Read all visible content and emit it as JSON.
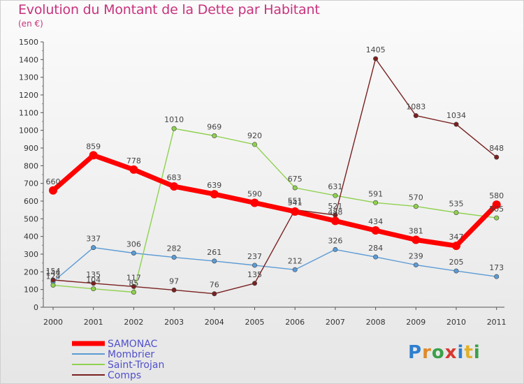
{
  "header": {
    "title": "Evolution du Montant de la Dette par Habitant",
    "subtitle": "(en €)"
  },
  "logo": {
    "letters": [
      {
        "ch": "P",
        "color": "#2e7fd0"
      },
      {
        "ch": "r",
        "color": "#e08a2a"
      },
      {
        "ch": "o",
        "color": "#3aa04a"
      },
      {
        "ch": "x",
        "color": "#d8372f"
      },
      {
        "ch": "i",
        "color": "#2e7fd0"
      },
      {
        "ch": "t",
        "color": "#e0b22a"
      },
      {
        "ch": "i",
        "color": "#3aa04a"
      }
    ]
  },
  "chart_data": {
    "type": "line",
    "x": [
      "2000",
      "2001",
      "2002",
      "2003",
      "2004",
      "2005",
      "2006",
      "2007",
      "2008",
      "2009",
      "2010",
      "2011"
    ],
    "ylim": [
      0,
      1500
    ],
    "yticks": [
      "0",
      "100",
      "200",
      "300",
      "400",
      "500",
      "600",
      "700",
      "800",
      "900",
      "1000",
      "1100",
      "1200",
      "1300",
      "1400",
      "1500"
    ],
    "legend_position": "bottom-left",
    "grid": false,
    "series": [
      {
        "name": "SAMONAC",
        "color": "#ff0000",
        "values": [
          660,
          859,
          778,
          683,
          639,
          590,
          541,
          488,
          434,
          381,
          347,
          580
        ],
        "labels": [
          "660",
          "859",
          "778",
          "683",
          "639",
          "590",
          "541",
          "488",
          "434",
          "381",
          "347",
          "580"
        ]
      },
      {
        "name": "Mombrier",
        "color": "#5b9bd5",
        "values": [
          144,
          337,
          306,
          282,
          261,
          237,
          212,
          326,
          284,
          239,
          205,
          173
        ],
        "labels": [
          "144",
          "337",
          "306",
          "282",
          "261",
          "237",
          "212",
          "326",
          "284",
          "239",
          "205",
          "173"
        ]
      },
      {
        "name": "Saint-Trojan",
        "color": "#8fd14f",
        "values": [
          124,
          104,
          85,
          1010,
          969,
          920,
          675,
          631,
          591,
          570,
          535,
          505
        ],
        "labels": [
          "124",
          "104",
          "85",
          "1010",
          "969",
          "920",
          "675",
          "631",
          "591",
          "570",
          "535",
          "505"
        ]
      },
      {
        "name": "Comps",
        "color": "#7a2020",
        "values": [
          154,
          135,
          117,
          97,
          76,
          135,
          551,
          521,
          1405,
          1083,
          1034,
          848
        ],
        "labels": [
          "154",
          "135",
          "117",
          "97",
          "76",
          "135",
          "551",
          "521",
          "1405",
          "1083",
          "1034",
          "848"
        ]
      }
    ]
  }
}
